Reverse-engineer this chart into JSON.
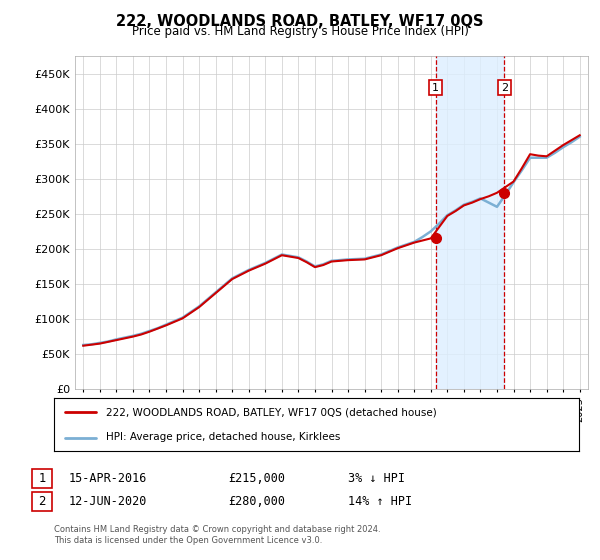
{
  "title": "222, WOODLANDS ROAD, BATLEY, WF17 0QS",
  "subtitle": "Price paid vs. HM Land Registry's House Price Index (HPI)",
  "legend_line1": "222, WOODLANDS ROAD, BATLEY, WF17 0QS (detached house)",
  "legend_line2": "HPI: Average price, detached house, Kirklees",
  "transaction1_date": "15-APR-2016",
  "transaction1_price": "£215,000",
  "transaction1_hpi": "3% ↓ HPI",
  "transaction2_date": "12-JUN-2020",
  "transaction2_price": "£280,000",
  "transaction2_hpi": "14% ↑ HPI",
  "footer": "Contains HM Land Registry data © Crown copyright and database right 2024.\nThis data is licensed under the Open Government Licence v3.0.",
  "hpi_color": "#7bafd4",
  "price_color": "#cc0000",
  "vline_color": "#cc0000",
  "shade_color": "#ddeeff",
  "ylim": [
    0,
    475000
  ],
  "yticks": [
    0,
    50000,
    100000,
    150000,
    200000,
    250000,
    300000,
    350000,
    400000,
    450000
  ],
  "x_start_year": 1995,
  "x_end_year": 2025,
  "transaction1_year": 2016.29,
  "transaction2_year": 2020.45,
  "hpi_years": [
    1995,
    1995.5,
    1996,
    1996.5,
    1997,
    1997.5,
    1998,
    1998.5,
    1999,
    1999.5,
    2000,
    2000.5,
    2001,
    2001.5,
    2002,
    2002.5,
    2003,
    2003.5,
    2004,
    2004.5,
    2005,
    2005.5,
    2006,
    2006.5,
    2007,
    2007.5,
    2008,
    2008.5,
    2009,
    2009.5,
    2010,
    2010.5,
    2011,
    2011.5,
    2012,
    2012.5,
    2013,
    2013.5,
    2014,
    2014.5,
    2015,
    2015.5,
    2016,
    2016.5,
    2017,
    2017.5,
    2018,
    2018.5,
    2019,
    2019.5,
    2020,
    2020.5,
    2021,
    2021.5,
    2022,
    2022.5,
    2023,
    2023.5,
    2024,
    2024.5,
    2025
  ],
  "hpi_values": [
    63000,
    64000,
    66000,
    68000,
    71000,
    73500,
    76000,
    79000,
    83000,
    87000,
    92000,
    97000,
    102000,
    110000,
    118000,
    128000,
    138000,
    148000,
    158000,
    164000,
    170000,
    175000,
    180000,
    186000,
    192000,
    190000,
    188000,
    182000,
    175000,
    178000,
    183000,
    184000,
    185000,
    185500,
    186000,
    189000,
    192000,
    197000,
    202000,
    206000,
    210000,
    217000,
    225000,
    236000,
    248000,
    255000,
    263000,
    267000,
    272000,
    266000,
    260000,
    277000,
    295000,
    312000,
    330000,
    330000,
    330000,
    337000,
    345000,
    352000,
    360000
  ],
  "price_years": [
    1995,
    1995.5,
    1996,
    1996.5,
    1997,
    1997.5,
    1998,
    1998.5,
    1999,
    1999.5,
    2000,
    2000.5,
    2001,
    2001.5,
    2002,
    2002.5,
    2003,
    2003.5,
    2004,
    2004.5,
    2005,
    2005.5,
    2006,
    2006.5,
    2007,
    2007.5,
    2008,
    2008.5,
    2009,
    2009.5,
    2010,
    2010.5,
    2011,
    2011.5,
    2012,
    2012.5,
    2013,
    2013.5,
    2014,
    2014.5,
    2015,
    2015.5,
    2016,
    2016.5,
    2017,
    2017.5,
    2018,
    2018.5,
    2019,
    2019.5,
    2020,
    2020.5,
    2021,
    2021.5,
    2022,
    2022.5,
    2023,
    2023.5,
    2024,
    2024.5,
    2025
  ],
  "price_values": [
    62000,
    63500,
    65000,
    67500,
    70000,
    72500,
    75000,
    78000,
    82000,
    86500,
    91000,
    96000,
    101000,
    109000,
    117000,
    127000,
    137000,
    147000,
    157000,
    163000,
    169000,
    174000,
    179000,
    185000,
    191000,
    189000,
    187000,
    181000,
    174000,
    177000,
    182000,
    183000,
    184000,
    184500,
    185000,
    188000,
    191000,
    196000,
    201000,
    205000,
    209000,
    212000,
    215000,
    231000,
    247000,
    254000,
    262000,
    266000,
    271000,
    275000,
    280000,
    288000,
    296000,
    315000,
    335000,
    333000,
    332000,
    340000,
    348000,
    355000,
    362000
  ]
}
